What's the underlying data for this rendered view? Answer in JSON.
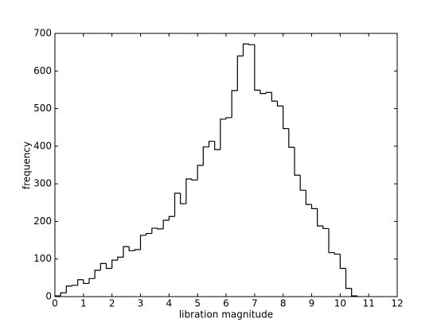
{
  "chart_data": {
    "type": "histogram",
    "xlabel": "libration magnitude",
    "ylabel": "frequency",
    "color": "#000000",
    "bins": [
      0,
      0.2,
      0.4,
      0.6,
      0.8,
      1.0,
      1.2,
      1.4,
      1.6,
      1.8,
      2.0,
      2.2,
      2.4,
      2.6,
      2.8,
      3.0,
      3.2,
      3.4,
      3.6,
      3.8,
      4.0,
      4.2,
      4.4,
      4.6,
      4.8,
      5.0,
      5.2,
      5.4,
      5.6,
      5.8,
      6.0,
      6.2,
      6.4,
      6.6,
      6.8,
      7.0,
      7.2,
      7.4,
      7.6,
      7.8,
      8.0,
      8.2,
      8.4,
      8.6,
      8.8,
      9.0,
      9.2,
      9.4,
      9.6,
      9.8,
      10.0,
      10.2,
      10.4,
      10.6
    ],
    "values": [
      2,
      10,
      28,
      30,
      45,
      35,
      48,
      70,
      88,
      75,
      97,
      105,
      133,
      122,
      125,
      163,
      168,
      182,
      180,
      203,
      213,
      275,
      247,
      313,
      310,
      349,
      398,
      413,
      391,
      472,
      476,
      548,
      640,
      672,
      670,
      549,
      540,
      543,
      520,
      507,
      447,
      397,
      323,
      283,
      245,
      234,
      188,
      181,
      117,
      113,
      75,
      22,
      2
    ],
    "xlim": [
      0,
      12
    ],
    "xticks": [
      0,
      1,
      2,
      3,
      4,
      5,
      6,
      7,
      8,
      9,
      10,
      11,
      12
    ],
    "ylim": [
      0,
      700
    ],
    "yticks": [
      0,
      100,
      200,
      300,
      400,
      500,
      600,
      700
    ]
  }
}
